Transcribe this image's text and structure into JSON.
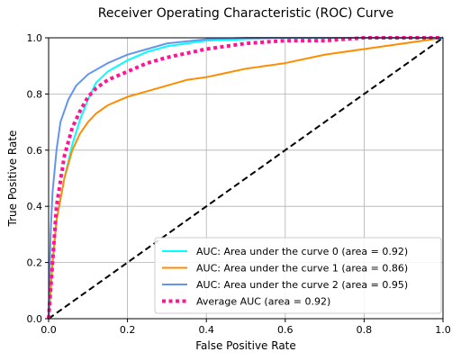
{
  "chart_data": {
    "type": "line",
    "title": "Receiver Operating Characteristic (ROC) Curve",
    "xlabel": "False Positive Rate",
    "ylabel": "True Positive Rate",
    "xlim": [
      0.0,
      1.0
    ],
    "ylim": [
      0.0,
      1.0
    ],
    "xticks": [
      0.0,
      0.2,
      0.4,
      0.6,
      0.8,
      1.0
    ],
    "xtick_labels": [
      "0.0",
      "0.2",
      "0.4",
      "0.6",
      "0.8",
      "1.0"
    ],
    "yticks": [
      0.0,
      0.2,
      0.4,
      0.6,
      0.8,
      1.0
    ],
    "ytick_labels": [
      "0.0",
      "0.2",
      "0.4",
      "0.6",
      "0.8",
      "1.0"
    ],
    "grid": true,
    "legend_position": "lower-right",
    "series": [
      {
        "name": "AUC: Area under the curve 0 (area = 0.92)",
        "color": "#00ffff",
        "style": "solid",
        "x": [
          0.0,
          0.01,
          0.02,
          0.04,
          0.06,
          0.08,
          0.1,
          0.12,
          0.15,
          0.2,
          0.25,
          0.3,
          0.4,
          0.5,
          0.6,
          0.8,
          1.0
        ],
        "y": [
          0.0,
          0.2,
          0.35,
          0.5,
          0.62,
          0.71,
          0.78,
          0.84,
          0.88,
          0.92,
          0.95,
          0.97,
          0.99,
          0.995,
          1.0,
          1.0,
          1.0
        ]
      },
      {
        "name": "AUC: Area under the curve 1 (area = 0.86)",
        "color": "#ff8c00",
        "style": "solid",
        "x": [
          0.0,
          0.01,
          0.02,
          0.04,
          0.06,
          0.08,
          0.1,
          0.12,
          0.15,
          0.2,
          0.25,
          0.3,
          0.35,
          0.4,
          0.5,
          0.6,
          0.7,
          0.8,
          0.9,
          0.95,
          1.0
        ],
        "y": [
          0.0,
          0.2,
          0.35,
          0.5,
          0.6,
          0.66,
          0.7,
          0.73,
          0.76,
          0.79,
          0.81,
          0.83,
          0.85,
          0.86,
          0.89,
          0.91,
          0.94,
          0.96,
          0.98,
          0.99,
          1.0
        ]
      },
      {
        "name": "AUC: Area under the curve 2 (area = 0.95)",
        "color": "#6495ed",
        "style": "solid",
        "x": [
          0.0,
          0.005,
          0.01,
          0.02,
          0.03,
          0.05,
          0.07,
          0.1,
          0.15,
          0.2,
          0.25,
          0.3,
          0.4,
          0.5,
          0.6,
          0.8,
          1.0
        ],
        "y": [
          0.0,
          0.3,
          0.45,
          0.6,
          0.7,
          0.78,
          0.83,
          0.87,
          0.91,
          0.94,
          0.96,
          0.98,
          0.995,
          1.0,
          1.0,
          1.0,
          1.0
        ]
      },
      {
        "name": "Average AUC (area = 0.92)",
        "color": "#ff1493",
        "style": "dotted",
        "x": [
          0.0,
          0.02,
          0.04,
          0.06,
          0.08,
          0.1,
          0.12,
          0.15,
          0.2,
          0.25,
          0.3,
          0.4,
          0.5,
          0.6,
          0.7,
          0.8,
          0.9,
          1.0
        ],
        "y": [
          0.0,
          0.4,
          0.58,
          0.68,
          0.74,
          0.79,
          0.82,
          0.85,
          0.88,
          0.91,
          0.93,
          0.96,
          0.98,
          0.99,
          0.99,
          1.0,
          1.0,
          1.0
        ]
      }
    ],
    "reference_line": {
      "color": "#000000",
      "style": "dashed",
      "x": [
        0.0,
        1.0
      ],
      "y": [
        0.0,
        1.0
      ]
    }
  }
}
